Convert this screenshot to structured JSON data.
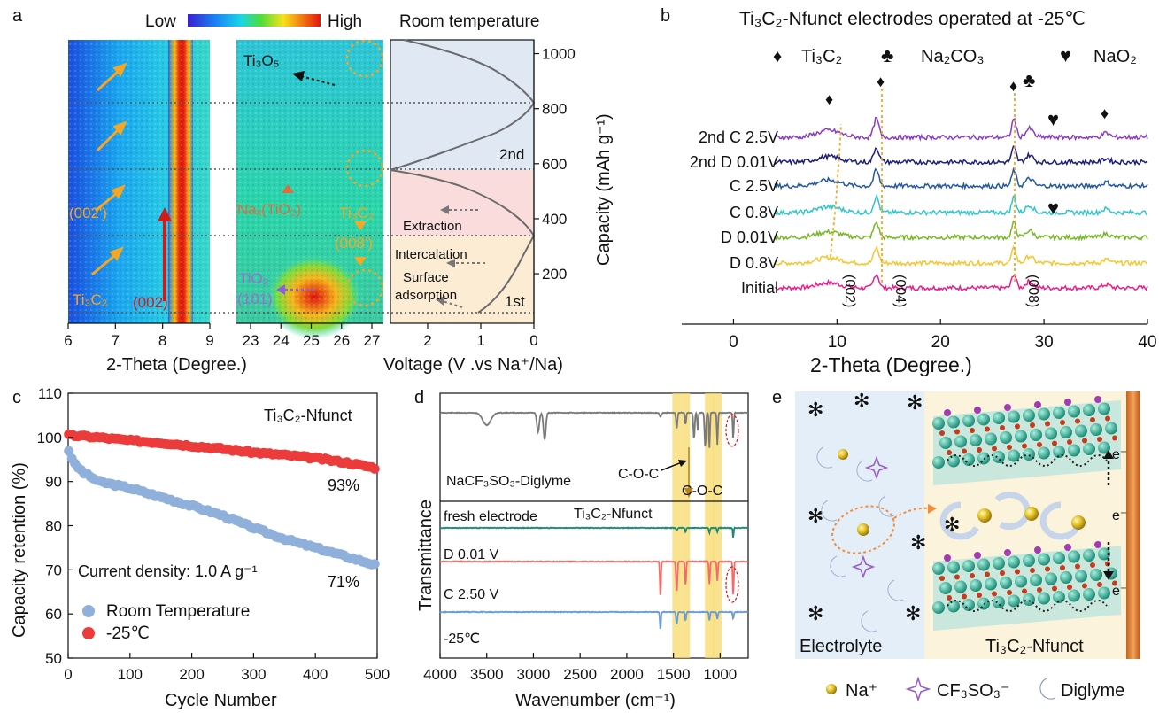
{
  "panels": {
    "a": {
      "letter": "a",
      "colorbar": {
        "low": "Low",
        "high": "High"
      },
      "right_title": "Room temperature",
      "xlabel_left": "2-Theta (Degree.)",
      "xlabel_right": "Voltage (V .vs Na⁺/Na)",
      "ylabel": "Capacity (mAh g⁻¹)",
      "xticks_left": [
        "6",
        "7",
        "8",
        "9"
      ],
      "xticks_mid": [
        "23",
        "24",
        "25",
        "26",
        "27"
      ],
      "xticks_right": [
        "2",
        "1",
        "0"
      ],
      "yticks": [
        "200",
        "400",
        "600",
        "800",
        "1000"
      ],
      "labels": {
        "ti3o5": "Ti₃O₅",
        "p002p": "(002')",
        "ti3c2": "Ti₃C₂",
        "p002": "(002)",
        "naxtio2": "Naₓ(TiO₂)",
        "ti3c2_008": "Ti₃C₂",
        "p008p": "(008')",
        "tio2": "TiO₂",
        "p101": "(101)",
        "cycle2": "2nd",
        "cycle1": "1st",
        "extraction": "Extraction",
        "intercalation": "Intercalation",
        "surface": "Surface",
        "adsorption": "adsorption"
      }
    },
    "b": {
      "letter": "b",
      "title": "Ti₃C₂-Nfunct electrodes operated at -25℃",
      "legend": {
        "ti3c2": "Ti₃C₂",
        "na2co3": "Na₂CO₃",
        "nao2": "NaO₂"
      },
      "xlabel": "2-Theta (Degree.)",
      "xticks": [
        "0",
        "10",
        "20",
        "30",
        "40"
      ],
      "peak_labels": [
        "(002)",
        "(004)",
        "(008)"
      ]
    },
    "c": {
      "letter": "c",
      "label": "Ti₃C₂-Nfunct",
      "current_density": "Current density: 1.0 A g⁻¹",
      "end_low": "93%",
      "end_rt": "71%",
      "xlabel": "Cycle Number",
      "ylabel": "Capacity retention (%)",
      "xticks": [
        "0",
        "100",
        "200",
        "300",
        "400",
        "500"
      ],
      "yticks": [
        "50",
        "60",
        "70",
        "80",
        "90",
        "100",
        "110"
      ]
    },
    "d": {
      "letter": "d",
      "xlabel": "Wavenumber (cm⁻¹)",
      "ylabel": "Transmittance",
      "xticks": [
        "4000",
        "3500",
        "3000",
        "2500",
        "2000",
        "1500",
        "1000"
      ],
      "labels": {
        "electrolyte": "NaCF₃SO₃-Diglyme",
        "coc1": "C-O-C",
        "coc2": "C-O-C",
        "fresh": "fresh electrode",
        "ti3c2": "Ti₃C₂-Nfunct",
        "d001": "D 0.01 V",
        "c250": "C 2.50 V",
        "temp": "-25℃"
      }
    },
    "e": {
      "letter": "e",
      "electrolyte": "Electrolyte",
      "electrode": "Ti₃C₂-Nfunct",
      "electron": "e⁻",
      "legend": {
        "na": "Na⁺",
        "cf3so3": "CF₃SO₃⁻",
        "diglyme": "Diglyme"
      }
    }
  },
  "chart_data": [
    {
      "panel": "a",
      "type": "heatmap",
      "title": "Room temperature",
      "xlabel": "2-Theta (Degree.)",
      "x2label": "Voltage (V .vs Na⁺/Na)",
      "ylabel": "Capacity (mAh g⁻¹)",
      "xlim_left": [
        6,
        9
      ],
      "xlim_mid": [
        22.5,
        27.6
      ],
      "xlim_voltage": [
        2.7,
        0
      ],
      "ylim": [
        20,
        1050
      ],
      "dotted_lines_capacity": [
        45,
        330,
        565,
        800
      ],
      "voltage_profile_1st": {
        "capacity": [
          45,
          80,
          120,
          170,
          220,
          260,
          300,
          330
        ],
        "voltage": [
          1.3,
          0.95,
          0.55,
          0.35,
          0.2,
          0.12,
          0.05,
          0.0
        ]
      },
      "voltage_profile_charge": {
        "capacity": [
          330,
          380,
          440,
          500,
          540,
          565
        ],
        "voltage": [
          0.0,
          0.5,
          1.2,
          1.9,
          2.4,
          2.7
        ]
      },
      "voltage_profile_2nd": {
        "capacity": [
          565,
          620,
          680,
          740,
          780,
          800,
          860,
          940,
          1050
        ],
        "voltage": [
          2.7,
          1.6,
          1.0,
          0.5,
          0.2,
          0.0,
          0.4,
          0.9,
          1.5
        ]
      }
    },
    {
      "panel": "b",
      "type": "line",
      "title": "Ti₃C₂-Nfunct electrodes operated at -25℃",
      "xlabel": "2-Theta (Degree.)",
      "xlim": [
        -5,
        40
      ],
      "x_start": 4,
      "peaks": [
        {
          "pos": 9.2,
          "h": 0.55,
          "w": 1.6
        },
        {
          "pos": 13.8,
          "h": 1.5,
          "w": 0.35
        },
        {
          "pos": 27.1,
          "h": 1.5,
          "w": 0.3
        },
        {
          "pos": 28.6,
          "h": 0.7,
          "w": 0.5
        },
        {
          "pos": 36.0,
          "h": 0.35,
          "w": 0.5
        }
      ],
      "series": [
        {
          "name": "Initial",
          "color": "#ec1c8c",
          "scale": 0.75
        },
        {
          "name": "D 0.8V",
          "color": "#f7c52a",
          "scale": 0.8
        },
        {
          "name": "D 0.01V",
          "color": "#77b82a",
          "scale": 0.8
        },
        {
          "name": "C 0.8V",
          "color": "#2fc6c9",
          "scale": 0.85
        },
        {
          "name": "C 2.5V",
          "color": "#2359a3",
          "scale": 0.85
        },
        {
          "name": "2nd D 0.01V",
          "color": "#1d1d7e",
          "scale": 0.8
        },
        {
          "name": "2nd C 2.5V",
          "color": "#8a3cc2",
          "scale": 1.0
        }
      ]
    },
    {
      "panel": "c",
      "type": "scatter",
      "xlabel": "Cycle Number",
      "ylabel": "Capacity retention (%)",
      "xlim": [
        0,
        500
      ],
      "ylim": [
        50,
        110
      ],
      "series": [
        {
          "name": "Room Temperature",
          "color": "#8fb0db",
          "x": [
            1,
            10,
            25,
            50,
            100,
            150,
            200,
            250,
            300,
            350,
            400,
            450,
            500
          ],
          "y": [
            97,
            94,
            92,
            90,
            88.5,
            86.5,
            84.5,
            82.3,
            79.5,
            77,
            75,
            73,
            71
          ]
        },
        {
          "name": "-25℃",
          "color": "#ec3b3b",
          "x": [
            1,
            50,
            100,
            150,
            200,
            250,
            300,
            350,
            400,
            450,
            500
          ],
          "y": [
            100.5,
            100,
            99.3,
            98.8,
            98.1,
            97.4,
            96.6,
            96,
            95.3,
            94.3,
            93
          ]
        }
      ]
    },
    {
      "panel": "d",
      "type": "line",
      "xlabel": "Wavenumber (cm⁻¹)",
      "ylabel": "Transmittance",
      "xlim": [
        4000,
        700
      ],
      "highlight_bands": [
        1465,
        1370,
        1115,
        1030
      ],
      "series": [
        {
          "name": "NaCF₃SO₃-Diglyme",
          "color": "#7a7a7a"
        },
        {
          "name": "fresh electrode",
          "color": "#1f8a7a"
        },
        {
          "name": "D 0.01 V",
          "color": "#f36b6b"
        },
        {
          "name": "C 2.50 V",
          "color": "#6b9bd1"
        }
      ]
    }
  ],
  "colors": {
    "cb_low": "#3d2bd8",
    "cb_high": "#e00000",
    "orange": "#f5a623"
  }
}
